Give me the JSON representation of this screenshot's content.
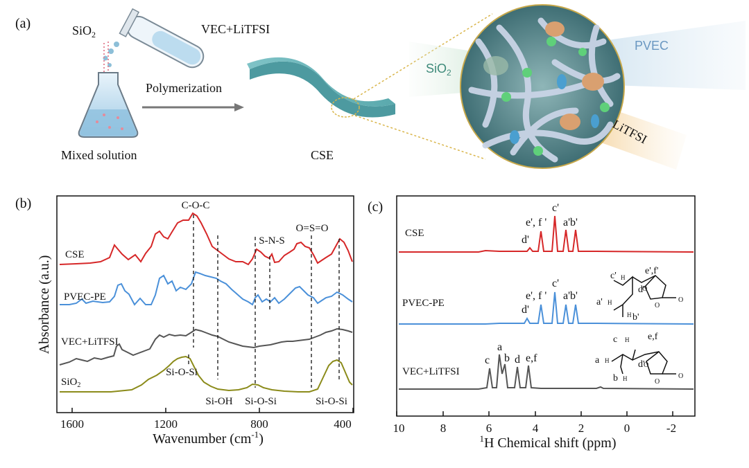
{
  "panel_a": {
    "label": "(a)",
    "sio2": "SiO",
    "sio2_sub": "2",
    "vec": "VEC+LiTFSI",
    "polymerization": "Polymerization",
    "mixed": "Mixed solution",
    "cse": "CSE",
    "pvec": "PVEC",
    "litfsi": "LiTFSI",
    "zoom_sio2": "SiO",
    "zoom_sio2_sub": "2"
  },
  "panel_b": {
    "label": "(b)",
    "ylabel": "Absorbance (a.u.)",
    "xlabel": "Wavenumber (cm",
    "xlabel_sup": "-1",
    "xlabel_tail": ")",
    "ticks": [
      "1600",
      "1200",
      "800",
      "400"
    ],
    "series": [
      "CSE",
      "PVEC-PE",
      "VEC+LiTFSI",
      "SiO"
    ],
    "series_sub": "2",
    "annotations": [
      "C-O-C",
      "S-N-S",
      "O=S=O",
      "Si-O-Si",
      "Si-OH",
      "Si-O-Si",
      "Si-O-Si"
    ],
    "colors": {
      "CSE": "#d62728",
      "PVEC-PE": "#4a90d9",
      "VEC+LiTFSI": "#555555",
      "SiO2": "#8b8b1a"
    }
  },
  "panel_c": {
    "label": "(c)",
    "xlabel_sup": "1",
    "xlabel": "H Chemical shift (ppm)",
    "ticks": [
      "10",
      "8",
      "6",
      "4",
      "2",
      "0",
      "-2"
    ],
    "series": [
      "CSE",
      "PVEC-PE",
      "VEC+LiTFSI"
    ],
    "peaks_top": [
      "e', f '",
      "c'",
      "a'b'",
      "d'"
    ],
    "peaks_mid": [
      "e', f '",
      "c'",
      "a'b'",
      "d'"
    ],
    "peaks_bot": [
      "c",
      "a",
      "b",
      "d",
      "e,f"
    ],
    "struct_mid": [
      "c'",
      "H",
      "e',f'",
      "d'",
      "a'",
      "H",
      "H",
      "b'",
      "O",
      "O",
      "O"
    ],
    "struct_bot": [
      "c",
      "H",
      "e,f",
      "a",
      "H",
      "d'",
      "b",
      "H",
      "O",
      "O",
      "O"
    ],
    "colors": {
      "CSE": "#d62728",
      "PVEC-PE": "#4a90d9",
      "VEC+LiTFSI": "#555555"
    }
  }
}
